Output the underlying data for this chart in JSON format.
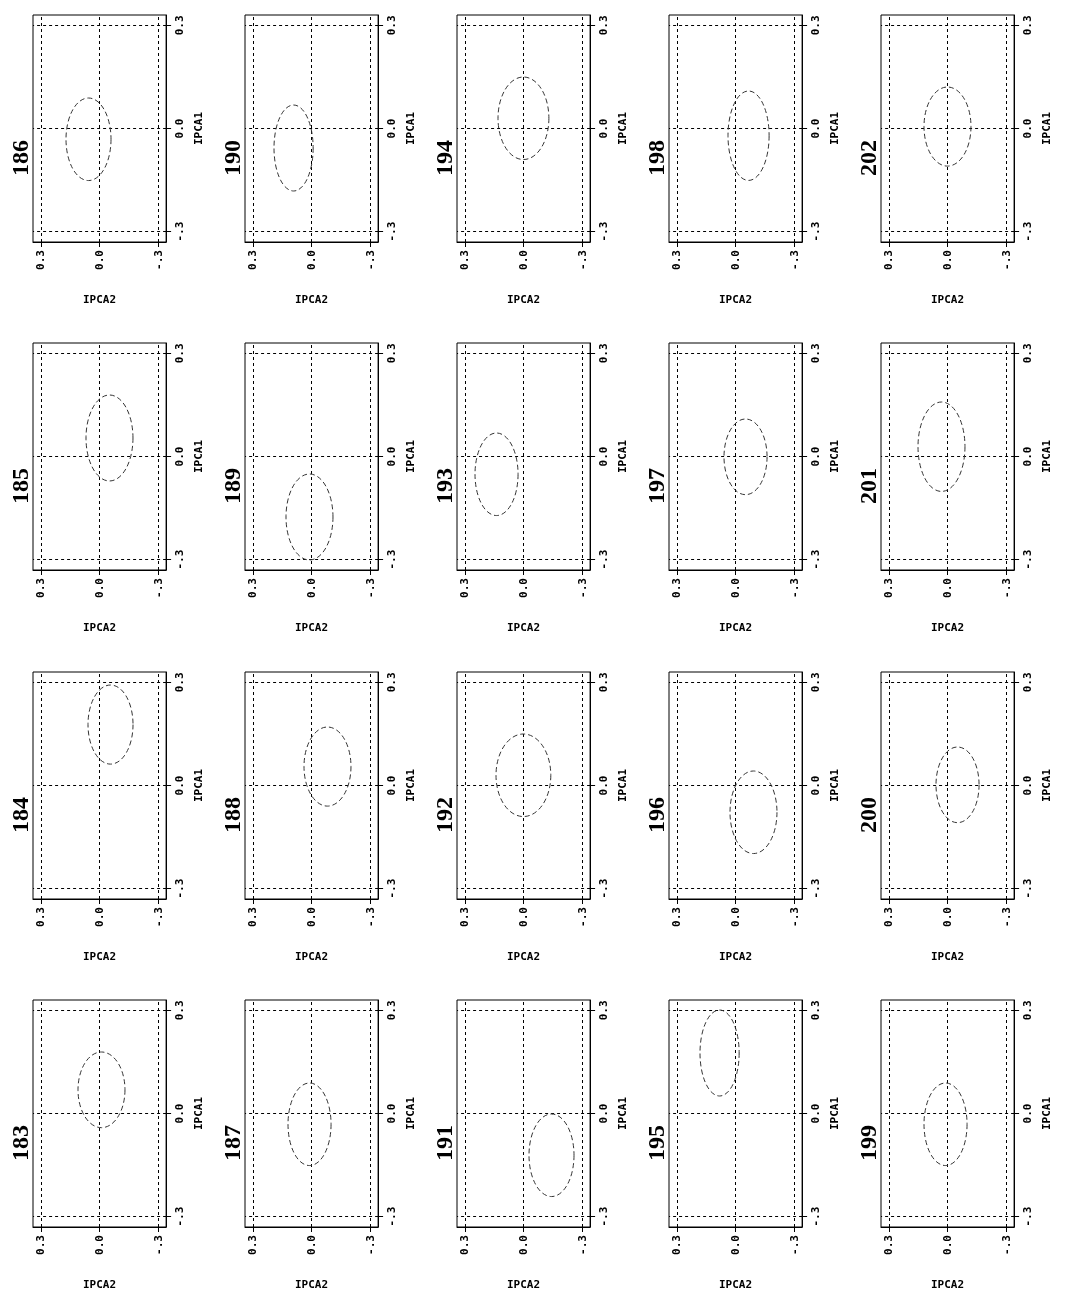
{
  "chart_data": [
    {
      "type": "line",
      "title": "183",
      "xlabel": "IPCA2",
      "ylabel": "IPCA1",
      "xlim": [
        0.34,
        -0.34
      ],
      "ylim": [
        -0.33,
        0.33
      ],
      "xticks": [
        {
          "value": 0.3,
          "label": "0.3"
        },
        {
          "value": 0,
          "label": "0.0"
        },
        {
          "value": -0.3,
          "label": "-.3"
        }
      ],
      "yticks": [
        {
          "value": -0.3,
          "label": "-.3"
        },
        {
          "value": 0,
          "label": "0.0"
        },
        {
          "value": 0.3,
          "label": "0.3"
        }
      ],
      "grid": true
    },
    {
      "type": "line",
      "title": "184",
      "xlabel": "IPCA2",
      "ylabel": "IPCA1",
      "xlim": [
        0.34,
        -0.34
      ],
      "ylim": [
        -0.33,
        0.33
      ],
      "xticks": [
        {
          "value": 0.3,
          "label": "0.3"
        },
        {
          "value": 0,
          "label": "0.0"
        },
        {
          "value": -0.3,
          "label": "-.3"
        }
      ],
      "yticks": [
        {
          "value": -0.3,
          "label": "-.3"
        },
        {
          "value": 0,
          "label": "0.0"
        },
        {
          "value": 0.3,
          "label": "0.3"
        }
      ],
      "grid": true
    },
    {
      "type": "line",
      "title": "185",
      "xlabel": "IPCA2",
      "ylabel": "IPCA1",
      "xlim": [
        0.34,
        -0.34
      ],
      "ylim": [
        -0.33,
        0.33
      ],
      "xticks": [
        {
          "value": 0.3,
          "label": "0.3"
        },
        {
          "value": 0,
          "label": "0.0"
        },
        {
          "value": -0.3,
          "label": "-.3"
        }
      ],
      "yticks": [
        {
          "value": -0.3,
          "label": "-.3"
        },
        {
          "value": 0,
          "label": "0.0"
        },
        {
          "value": 0.3,
          "label": "0.3"
        }
      ],
      "grid": true
    },
    {
      "type": "line",
      "title": "186",
      "xlabel": "IPCA2",
      "ylabel": "IPCA1",
      "xlim": [
        0.34,
        -0.34
      ],
      "ylim": [
        -0.33,
        0.33
      ],
      "xticks": [
        {
          "value": 0.3,
          "label": "0.3"
        },
        {
          "value": 0,
          "label": "0.0"
        },
        {
          "value": -0.3,
          "label": "-.3"
        }
      ],
      "yticks": [
        {
          "value": -0.3,
          "label": "-.3"
        },
        {
          "value": 0,
          "label": "0.0"
        },
        {
          "value": 0.3,
          "label": "0.3"
        }
      ],
      "grid": true
    },
    {
      "type": "line",
      "title": "187",
      "xlabel": "IPCA2",
      "ylabel": "IPCA1",
      "xlim": [
        0.34,
        -0.34
      ],
      "ylim": [
        -0.33,
        0.33
      ],
      "xticks": [
        {
          "value": 0.3,
          "label": "0.3"
        },
        {
          "value": 0,
          "label": "0.0"
        },
        {
          "value": -0.3,
          "label": "-.3"
        }
      ],
      "yticks": [
        {
          "value": -0.3,
          "label": "-.3"
        },
        {
          "value": 0,
          "label": "0.0"
        },
        {
          "value": 0.3,
          "label": "0.3"
        }
      ],
      "grid": true
    },
    {
      "type": "line",
      "title": "188",
      "xlabel": "IPCA2",
      "ylabel": "IPCA1",
      "xlim": [
        0.34,
        -0.34
      ],
      "ylim": [
        -0.33,
        0.33
      ],
      "xticks": [
        {
          "value": 0.3,
          "label": "0.3"
        },
        {
          "value": 0,
          "label": "0.0"
        },
        {
          "value": -0.3,
          "label": "-.3"
        }
      ],
      "yticks": [
        {
          "value": -0.3,
          "label": "-.3"
        },
        {
          "value": 0,
          "label": "0.0"
        },
        {
          "value": 0.3,
          "label": "0.3"
        }
      ],
      "grid": true
    },
    {
      "type": "line",
      "title": "189",
      "xlabel": "IPCA2",
      "ylabel": "IPCA1",
      "xlim": [
        0.34,
        -0.34
      ],
      "ylim": [
        -0.33,
        0.33
      ],
      "xticks": [
        {
          "value": 0.3,
          "label": "0.3"
        },
        {
          "value": 0,
          "label": "0.0"
        },
        {
          "value": -0.3,
          "label": "-.3"
        }
      ],
      "yticks": [
        {
          "value": -0.3,
          "label": "-.3"
        },
        {
          "value": 0,
          "label": "0.0"
        },
        {
          "value": 0.3,
          "label": "0.3"
        }
      ],
      "grid": true
    },
    {
      "type": "line",
      "title": "190",
      "xlabel": "IPCA2",
      "ylabel": "IPCA1",
      "xlim": [
        0.34,
        -0.34
      ],
      "ylim": [
        -0.33,
        0.33
      ],
      "xticks": [
        {
          "value": 0.3,
          "label": "0.3"
        },
        {
          "value": 0,
          "label": "0.0"
        },
        {
          "value": -0.3,
          "label": "-.3"
        }
      ],
      "yticks": [
        {
          "value": -0.3,
          "label": "-.3"
        },
        {
          "value": 0,
          "label": "0.0"
        },
        {
          "value": 0.3,
          "label": "0.3"
        }
      ],
      "grid": true
    },
    {
      "type": "line",
      "title": "191",
      "xlabel": "IPCA2",
      "ylabel": "IPCA1",
      "xlim": [
        0.34,
        -0.34
      ],
      "ylim": [
        -0.33,
        0.33
      ],
      "xticks": [
        {
          "value": 0.3,
          "label": "0.3"
        },
        {
          "value": 0,
          "label": "0.0"
        },
        {
          "value": -0.3,
          "label": "-.3"
        }
      ],
      "yticks": [
        {
          "value": -0.3,
          "label": "-.3"
        },
        {
          "value": 0,
          "label": "0.0"
        },
        {
          "value": 0.3,
          "label": "0.3"
        }
      ],
      "grid": true
    },
    {
      "type": "line",
      "title": "192",
      "xlabel": "IPCA2",
      "ylabel": "IPCA1",
      "xlim": [
        0.34,
        -0.34
      ],
      "ylim": [
        -0.33,
        0.33
      ],
      "xticks": [
        {
          "value": 0.3,
          "label": "0.3"
        },
        {
          "value": 0,
          "label": "0.0"
        },
        {
          "value": -0.3,
          "label": "-.3"
        }
      ],
      "yticks": [
        {
          "value": -0.3,
          "label": "-.3"
        },
        {
          "value": 0,
          "label": "0.0"
        },
        {
          "value": 0.3,
          "label": "0.3"
        }
      ],
      "grid": true
    },
    {
      "type": "line",
      "title": "193",
      "xlabel": "IPCA2",
      "ylabel": "IPCA1",
      "xlim": [
        0.34,
        -0.34
      ],
      "ylim": [
        -0.33,
        0.33
      ],
      "xticks": [
        {
          "value": 0.3,
          "label": "0.3"
        },
        {
          "value": 0,
          "label": "0.0"
        },
        {
          "value": -0.3,
          "label": "-.3"
        }
      ],
      "yticks": [
        {
          "value": -0.3,
          "label": "-.3"
        },
        {
          "value": 0,
          "label": "0.0"
        },
        {
          "value": 0.3,
          "label": "0.3"
        }
      ],
      "grid": true
    },
    {
      "type": "line",
      "title": "194",
      "xlabel": "IPCA2",
      "ylabel": "IPCA1",
      "xlim": [
        0.34,
        -0.34
      ],
      "ylim": [
        -0.33,
        0.33
      ],
      "xticks": [
        {
          "value": 0.3,
          "label": "0.3"
        },
        {
          "value": 0,
          "label": "0.0"
        },
        {
          "value": -0.3,
          "label": "-.3"
        }
      ],
      "yticks": [
        {
          "value": -0.3,
          "label": "-.3"
        },
        {
          "value": 0,
          "label": "0.0"
        },
        {
          "value": 0.3,
          "label": "0.3"
        }
      ],
      "grid": true
    },
    {
      "type": "line",
      "title": "195",
      "xlabel": "IPCA2",
      "ylabel": "IPCA1",
      "xlim": [
        0.34,
        -0.34
      ],
      "ylim": [
        -0.33,
        0.33
      ],
      "xticks": [
        {
          "value": 0.3,
          "label": "0.3"
        },
        {
          "value": 0,
          "label": "0.0"
        },
        {
          "value": -0.3,
          "label": "-.3"
        }
      ],
      "yticks": [
        {
          "value": -0.3,
          "label": "-.3"
        },
        {
          "value": 0,
          "label": "0.0"
        },
        {
          "value": 0.3,
          "label": "0.3"
        }
      ],
      "grid": true
    },
    {
      "type": "line",
      "title": "196",
      "xlabel": "IPCA2",
      "ylabel": "IPCA1",
      "xlim": [
        0.34,
        -0.34
      ],
      "ylim": [
        -0.33,
        0.33
      ],
      "xticks": [
        {
          "value": 0.3,
          "label": "0.3"
        },
        {
          "value": 0,
          "label": "0.0"
        },
        {
          "value": -0.3,
          "label": "-.3"
        }
      ],
      "yticks": [
        {
          "value": -0.3,
          "label": "-.3"
        },
        {
          "value": 0,
          "label": "0.0"
        },
        {
          "value": 0.3,
          "label": "0.3"
        }
      ],
      "grid": true
    },
    {
      "type": "line",
      "title": "197",
      "xlabel": "IPCA2",
      "ylabel": "IPCA1",
      "xlim": [
        0.34,
        -0.34
      ],
      "ylim": [
        -0.33,
        0.33
      ],
      "xticks": [
        {
          "value": 0.3,
          "label": "0.3"
        },
        {
          "value": 0,
          "label": "0.0"
        },
        {
          "value": -0.3,
          "label": "-.3"
        }
      ],
      "yticks": [
        {
          "value": -0.3,
          "label": "-.3"
        },
        {
          "value": 0,
          "label": "0.0"
        },
        {
          "value": 0.3,
          "label": "0.3"
        }
      ],
      "grid": true
    },
    {
      "type": "line",
      "title": "198",
      "xlabel": "IPCA2",
      "ylabel": "IPCA1",
      "xlim": [
        0.34,
        -0.34
      ],
      "ylim": [
        -0.33,
        0.33
      ],
      "xticks": [
        {
          "value": 0.3,
          "label": "0.3"
        },
        {
          "value": 0,
          "label": "0.0"
        },
        {
          "value": -0.3,
          "label": "-.3"
        }
      ],
      "yticks": [
        {
          "value": -0.3,
          "label": "-.3"
        },
        {
          "value": 0,
          "label": "0.0"
        },
        {
          "value": 0.3,
          "label": "0.3"
        }
      ],
      "grid": true
    },
    {
      "type": "line",
      "title": "199",
      "xlabel": "IPCA2",
      "ylabel": "IPCA1",
      "xlim": [
        0.34,
        -0.34
      ],
      "ylim": [
        -0.33,
        0.33
      ],
      "xticks": [
        {
          "value": 0.3,
          "label": "0.3"
        },
        {
          "value": 0,
          "label": "0.0"
        },
        {
          "value": -0.3,
          "label": "-.3"
        }
      ],
      "yticks": [
        {
          "value": -0.3,
          "label": "-.3"
        },
        {
          "value": 0,
          "label": "0.0"
        },
        {
          "value": 0.3,
          "label": "0.3"
        }
      ],
      "grid": true
    },
    {
      "type": "line",
      "title": "200",
      "xlabel": "IPCA2",
      "ylabel": "IPCA1",
      "xlim": [
        0.34,
        -0.34
      ],
      "ylim": [
        -0.33,
        0.33
      ],
      "xticks": [
        {
          "value": 0.3,
          "label": "0.3"
        },
        {
          "value": 0,
          "label": "0.0"
        },
        {
          "value": -0.3,
          "label": "-.3"
        }
      ],
      "yticks": [
        {
          "value": -0.3,
          "label": "-.3"
        },
        {
          "value": 0,
          "label": "0.0"
        },
        {
          "value": 0.3,
          "label": "0.3"
        }
      ],
      "grid": true
    },
    {
      "type": "line",
      "title": "201",
      "xlabel": "IPCA2",
      "ylabel": "IPCA1",
      "xlim": [
        0.34,
        -0.34
      ],
      "ylim": [
        -0.33,
        0.33
      ],
      "xticks": [
        {
          "value": 0.3,
          "label": "0.3"
        },
        {
          "value": 0,
          "label": "0.0"
        },
        {
          "value": -0.3,
          "label": "-.3"
        }
      ],
      "yticks": [
        {
          "value": -0.3,
          "label": "-.3"
        },
        {
          "value": 0,
          "label": "0.0"
        },
        {
          "value": 0.3,
          "label": "0.3"
        }
      ],
      "grid": true
    },
    {
      "type": "line",
      "title": "202",
      "xlabel": "IPCA2",
      "ylabel": "IPCA1",
      "xlim": [
        0.34,
        -0.34
      ],
      "ylim": [
        -0.33,
        0.33
      ],
      "xticks": [
        {
          "value": 0.3,
          "label": "0.3"
        },
        {
          "value": 0,
          "label": "0.0"
        },
        {
          "value": -0.3,
          "label": "-.3"
        }
      ],
      "yticks": [
        {
          "value": -0.3,
          "label": "-.3"
        },
        {
          "value": 0,
          "label": "0.0"
        },
        {
          "value": 0.3,
          "label": "0.3"
        }
      ],
      "grid": true
    }
  ]
}
